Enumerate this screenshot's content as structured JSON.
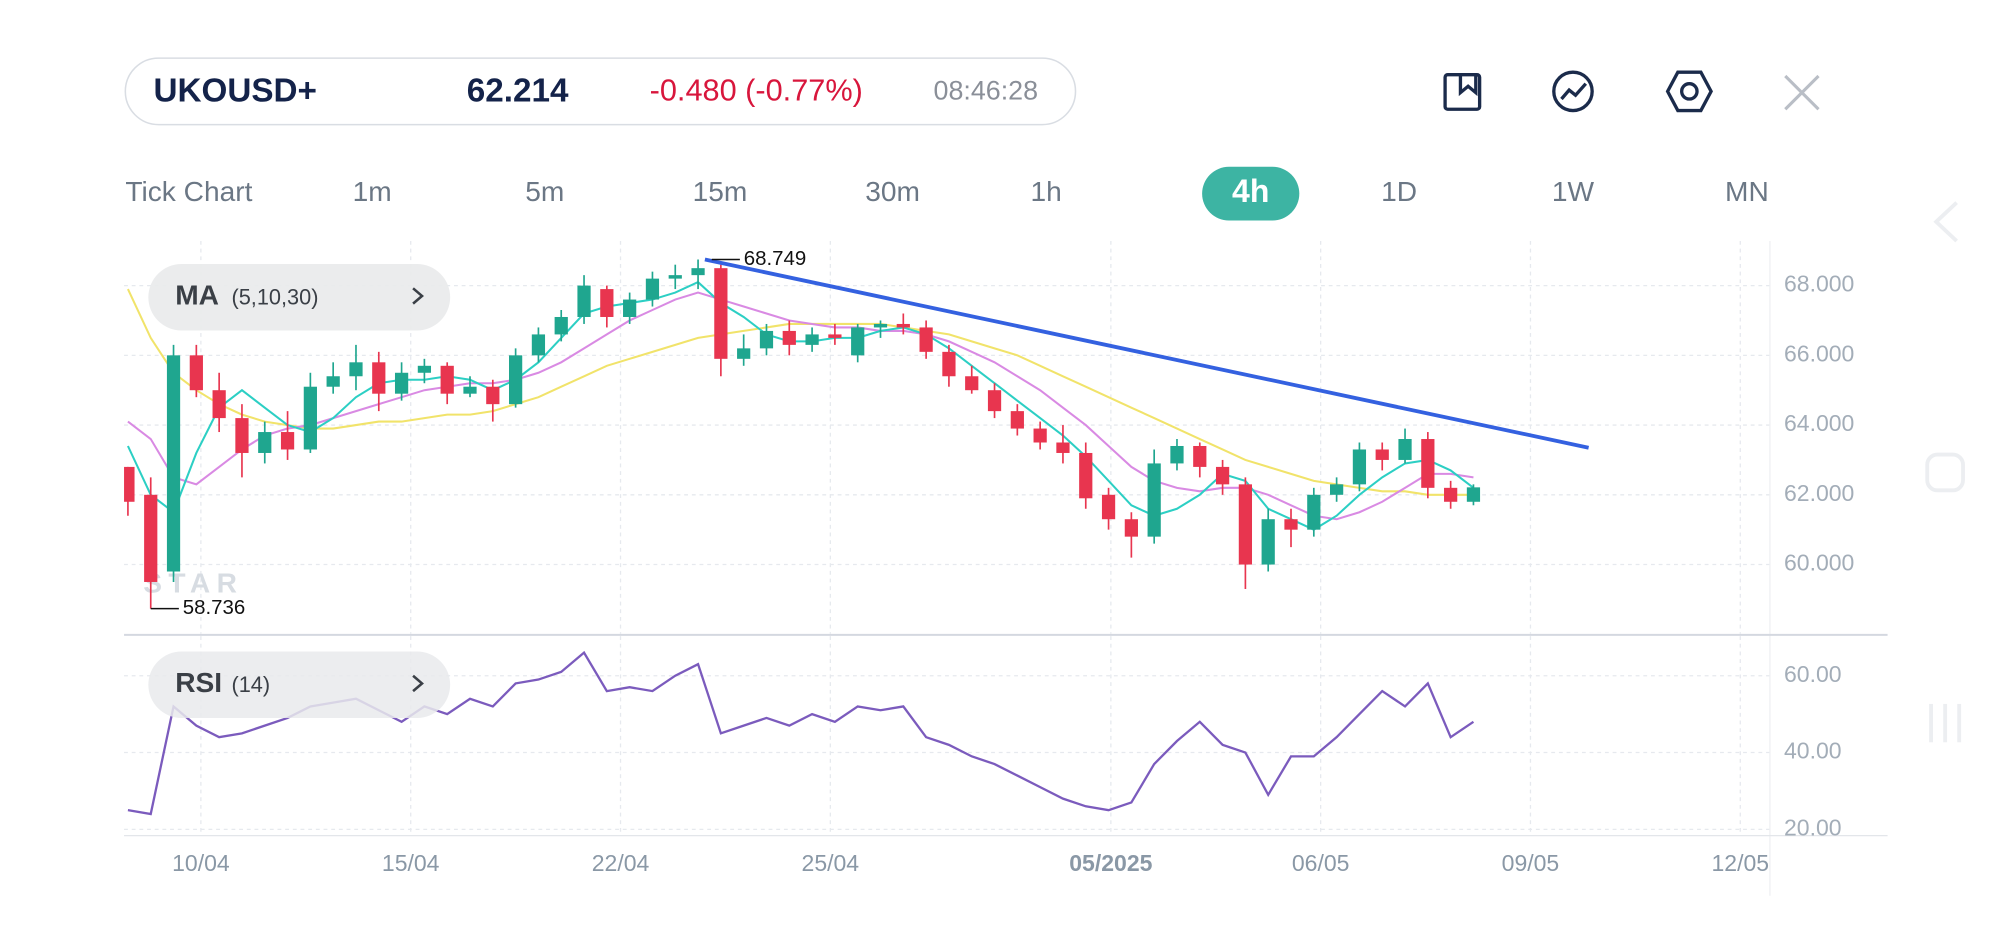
{
  "header": {
    "symbol": "UKOUSD+",
    "price": "62.214",
    "change": "-0.480 (-0.77%)",
    "time": "08:46:28"
  },
  "timeframes": {
    "items": [
      "Tick Chart",
      "1m",
      "5m",
      "15m",
      "30m",
      "1h",
      "4h",
      "1D",
      "1W",
      "MN"
    ],
    "active_index": 6
  },
  "indicators": {
    "ma_name": "MA",
    "ma_params": "(5,10,30)",
    "rsi_name": "RSI",
    "rsi_params": "(14)"
  },
  "watermark": "STAR",
  "chart_data": [
    {
      "type": "candlestick",
      "up_color": "#1fa68f",
      "down_color": "#e8354f",
      "xlim": [
        -0.17,
        72.0
      ],
      "ylim": [
        58.02,
        69.28
      ],
      "yticks": [
        {
          "value": 60,
          "label": "60.000"
        },
        {
          "value": 62,
          "label": "62.000"
        },
        {
          "value": 64,
          "label": "64.000"
        },
        {
          "value": 66,
          "label": "66.000"
        },
        {
          "value": 68,
          "label": "68.000"
        }
      ],
      "grid": true,
      "open": [
        62.8,
        62.0,
        59.8,
        66.0,
        65.0,
        64.2,
        63.2,
        63.8,
        63.3,
        65.1,
        65.4,
        65.8,
        64.9,
        65.5,
        65.7,
        64.9,
        65.1,
        64.6,
        66.0,
        66.6,
        67.1,
        67.9,
        67.1,
        67.6,
        68.2,
        68.3,
        68.5,
        65.9,
        66.2,
        66.7,
        66.3,
        66.6,
        66.0,
        66.8,
        66.9,
        66.8,
        66.1,
        65.4,
        65.0,
        64.4,
        63.9,
        63.5,
        63.2,
        62.0,
        61.3,
        60.8,
        62.9,
        63.4,
        62.8,
        62.3,
        60.0,
        61.3,
        61.0,
        62.0,
        62.3,
        63.3,
        63.0,
        63.6,
        62.2,
        61.8
      ],
      "high": [
        62.8,
        62.5,
        66.3,
        66.3,
        65.5,
        64.6,
        64.1,
        64.4,
        65.5,
        65.8,
        66.3,
        66.1,
        65.8,
        65.9,
        65.8,
        65.4,
        65.3,
        66.2,
        66.8,
        67.3,
        68.3,
        68.0,
        67.8,
        68.4,
        68.6,
        68.749,
        68.6,
        66.6,
        66.9,
        67.0,
        66.8,
        66.9,
        66.9,
        67.0,
        67.2,
        67.0,
        66.3,
        65.7,
        65.2,
        64.6,
        64.1,
        64.0,
        63.5,
        62.2,
        61.5,
        63.3,
        63.6,
        63.5,
        63.0,
        62.5,
        61.6,
        61.6,
        62.2,
        62.5,
        63.5,
        63.5,
        63.9,
        63.8,
        62.4,
        62.3
      ],
      "low": [
        61.4,
        58.736,
        59.5,
        64.8,
        63.8,
        62.5,
        62.9,
        63.0,
        63.2,
        64.9,
        65.0,
        64.4,
        64.7,
        65.2,
        64.6,
        64.8,
        64.1,
        64.5,
        65.8,
        66.4,
        66.9,
        66.8,
        66.9,
        67.4,
        67.9,
        67.9,
        65.4,
        65.7,
        66.0,
        66.0,
        66.1,
        66.3,
        65.8,
        66.5,
        66.6,
        65.9,
        65.1,
        64.9,
        64.2,
        63.7,
        63.3,
        62.9,
        61.6,
        61.0,
        60.2,
        60.6,
        62.7,
        62.5,
        62.0,
        59.3,
        59.8,
        60.5,
        60.8,
        61.8,
        62.1,
        62.7,
        62.9,
        61.9,
        61.6,
        61.7
      ],
      "close": [
        61.8,
        59.5,
        66.0,
        65.0,
        64.2,
        63.2,
        63.8,
        63.3,
        65.1,
        65.4,
        65.8,
        64.9,
        65.5,
        65.7,
        64.9,
        65.1,
        64.6,
        66.0,
        66.6,
        67.1,
        68.0,
        67.1,
        67.6,
        68.2,
        68.3,
        68.5,
        65.9,
        66.2,
        66.7,
        66.3,
        66.6,
        66.5,
        66.8,
        66.9,
        66.8,
        66.1,
        65.4,
        65.0,
        64.4,
        63.9,
        63.5,
        63.2,
        61.9,
        61.3,
        60.8,
        62.9,
        63.4,
        62.8,
        62.3,
        60.0,
        61.3,
        61.0,
        62.0,
        62.3,
        63.3,
        63.0,
        63.6,
        62.2,
        61.8,
        62.214
      ],
      "series": [
        {
          "color": "#f1e36a",
          "values": [
            67.9,
            66.5,
            65.5,
            65.0,
            64.6,
            64.3,
            64.1,
            64.0,
            63.9,
            63.9,
            64.0,
            64.1,
            64.1,
            64.2,
            64.3,
            64.3,
            64.4,
            64.6,
            64.8,
            65.1,
            65.4,
            65.7,
            65.9,
            66.1,
            66.3,
            66.5,
            66.6,
            66.7,
            66.8,
            66.9,
            66.9,
            66.9,
            66.9,
            66.9,
            66.8,
            66.7,
            66.6,
            66.4,
            66.2,
            66.0,
            65.7,
            65.4,
            65.1,
            64.8,
            64.5,
            64.2,
            63.9,
            63.6,
            63.3,
            63.0,
            62.8,
            62.6,
            62.4,
            62.3,
            62.2,
            62.1,
            62.1,
            62.0,
            62.0,
            62.0
          ]
        },
        {
          "color": "#d98ae3",
          "values": [
            64.1,
            63.6,
            62.5,
            62.3,
            62.8,
            63.3,
            63.7,
            63.9,
            64.0,
            64.2,
            64.4,
            64.6,
            64.8,
            65.0,
            65.1,
            65.2,
            65.2,
            65.3,
            65.5,
            65.8,
            66.2,
            66.6,
            67.0,
            67.3,
            67.6,
            67.8,
            67.6,
            67.4,
            67.2,
            67.0,
            66.9,
            66.8,
            66.8,
            66.7,
            66.7,
            66.6,
            66.4,
            66.1,
            65.8,
            65.4,
            65.0,
            64.5,
            64.0,
            63.4,
            62.8,
            62.4,
            62.2,
            62.1,
            62.2,
            62.2,
            62.0,
            61.7,
            61.4,
            61.3,
            61.5,
            61.8,
            62.2,
            62.6,
            62.6,
            62.5
          ]
        },
        {
          "color": "#2ccfc4",
          "values": [
            63.4,
            62.0,
            61.5,
            63.2,
            64.5,
            65.0,
            64.5,
            64.0,
            63.8,
            64.2,
            64.8,
            65.2,
            65.3,
            65.3,
            65.4,
            65.3,
            65.0,
            65.3,
            65.8,
            66.5,
            67.2,
            67.4,
            67.5,
            67.6,
            67.8,
            68.1,
            67.5,
            67.1,
            66.6,
            66.4,
            66.4,
            66.5,
            66.5,
            66.7,
            66.8,
            66.6,
            66.2,
            65.7,
            65.2,
            64.7,
            64.2,
            63.7,
            63.1,
            62.4,
            61.7,
            61.4,
            61.6,
            62.0,
            62.6,
            62.4,
            61.6,
            61.3,
            61.0,
            61.4,
            62.0,
            62.5,
            62.9,
            63.0,
            62.7,
            62.2
          ]
        }
      ],
      "trendline": {
        "color": "#3461e0",
        "x": [
          25.3,
          64.05
        ],
        "values": [
          68.75,
          63.35
        ]
      },
      "high_label": {
        "x": 25.6,
        "value": 68.749
      },
      "low_label": {
        "x": 1.0,
        "value": 58.736
      }
    },
    {
      "type": "line",
      "xlim": [
        -0.17,
        72.0
      ],
      "ylim": [
        18.7,
        70.3
      ],
      "yticks": [
        {
          "value": 20,
          "label": "20.00"
        },
        {
          "value": 40,
          "label": "40.00"
        },
        {
          "value": 60,
          "label": "60.00"
        }
      ],
      "xticks": [
        {
          "value": 3.2,
          "label": "10/04"
        },
        {
          "value": 12.4,
          "label": "15/04"
        },
        {
          "value": 21.6,
          "label": "22/04"
        },
        {
          "value": 30.8,
          "label": "25/04"
        },
        {
          "value": 43.1,
          "label": "05/2025"
        },
        {
          "value": 52.3,
          "label": "06/05"
        },
        {
          "value": 61.5,
          "label": "09/05"
        },
        {
          "value": 70.7,
          "label": "12/05"
        }
      ],
      "grid": true,
      "series": [
        {
          "color": "#7b5bbd",
          "values": [
            25,
            24,
            52,
            47,
            44,
            45,
            47,
            49,
            52,
            53,
            54,
            51,
            48,
            52,
            50,
            54,
            52,
            58,
            59,
            61,
            66,
            56,
            57,
            56,
            60,
            63,
            45,
            47,
            49,
            47,
            50,
            48,
            52,
            51,
            52,
            44,
            42,
            39,
            37,
            34,
            31,
            28,
            26,
            25,
            27,
            37,
            43,
            48,
            42,
            40,
            29,
            39,
            39,
            44,
            50,
            56,
            52,
            58,
            44,
            48
          ]
        }
      ]
    }
  ]
}
